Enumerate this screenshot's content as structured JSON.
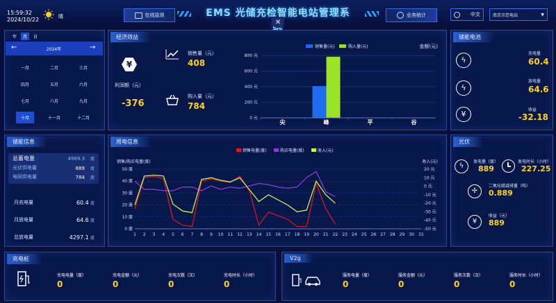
{
  "header": {
    "time": "15:59:32",
    "date": "2024/10/22",
    "weather": "晴",
    "title": "EMS 光储充检智能电站管理系统",
    "monitor_label": "在线监测",
    "stats_label": "业务统计",
    "lang": "中文",
    "site": "南京示范电站"
  },
  "calendar": {
    "tabs": [
      "年",
      "月",
      "日"
    ],
    "year": "2024年",
    "months": [
      "一月",
      "二月",
      "三月",
      "四月",
      "五月",
      "六月",
      "七月",
      "八月",
      "九月",
      "十月",
      "十一月",
      "十二月"
    ],
    "selected_index": 9
  },
  "economic": {
    "title": "经济效益",
    "profit_label": "利润额（元）",
    "profit_value": "-376",
    "sales_label": "销售量（元）",
    "sales_value": "408",
    "buy_label": "购入量（元）",
    "buy_value": "784"
  },
  "econ_chart": {
    "legend": [
      "销售量(元)",
      "购入量(元)"
    ],
    "unit": "金额(元)",
    "yticks": [
      "800 元",
      "600 元",
      "400 元",
      "200 元",
      "0 元"
    ],
    "categories": [
      "尖",
      "峰",
      "平",
      "谷"
    ]
  },
  "storage_battery": {
    "title": "储能电池",
    "charge_label": "充电量",
    "charge_value": "60.4",
    "discharge_label": "放电量",
    "discharge_value": "64.6",
    "income_label": "收益",
    "income_value": "-32.18"
  },
  "storage_info": {
    "title": "储能信息",
    "rows": [
      {
        "label": "总蓄电量",
        "value": "4989.3",
        "unit": "度"
      },
      {
        "label": "光伏供电量",
        "value": "889",
        "unit": "度"
      },
      {
        "label": "电网供电量",
        "value": "784",
        "unit": "度"
      }
    ],
    "month_charge_label": "月充电量",
    "month_charge_value": "60.4",
    "month_charge_unit": "度",
    "month_discharge_label": "月放电量",
    "month_discharge_value": "64.6",
    "month_discharge_unit": "度",
    "total_discharge_label": "总放电量",
    "total_discharge_value": "4297.1",
    "total_discharge_unit": "度"
  },
  "usage": {
    "title": "用电信息",
    "legend": [
      "销售电量(度)",
      "购买电量(度)",
      "收入(元)"
    ],
    "left_axis": "销售/购买电量(度)",
    "right_axis": "收入(元)",
    "yleft": [
      "50 度",
      "40 度",
      "30 度",
      "20 度",
      "10 度",
      "0 度"
    ],
    "yright": [
      "20 元",
      "10 元",
      "0 元",
      "-10 元",
      "-20 元",
      "-30 元",
      "-40 元",
      "-50 元"
    ],
    "xlabels": [
      "1",
      "2",
      "3",
      "4",
      "5",
      "6",
      "7",
      "8",
      "9",
      "10",
      "11",
      "12",
      "13",
      "14",
      "15",
      "16",
      "17",
      "18",
      "19",
      "20",
      "21",
      "22",
      "23",
      "24",
      "25",
      "26",
      "27",
      "28",
      "29",
      "30",
      "31"
    ]
  },
  "chart_data": [
    {
      "type": "bar",
      "title": "",
      "categories": [
        "尖",
        "峰",
        "平",
        "谷"
      ],
      "series": [
        {
          "name": "销售量(元)",
          "values": [
            0,
            408,
            0,
            0
          ]
        },
        {
          "name": "购入量(元)",
          "values": [
            0,
            784,
            0,
            0
          ]
        }
      ],
      "ylabel": "金额(元)",
      "ylim": [
        0,
        800
      ]
    },
    {
      "type": "line",
      "x": [
        1,
        2,
        3,
        4,
        5,
        6,
        7,
        8,
        9,
        10,
        11,
        12,
        13,
        14,
        15,
        16,
        17,
        18,
        19,
        20,
        21,
        22
      ],
      "series": [
        {
          "name": "销售电量(度)",
          "values": [
            17,
            43,
            44,
            42,
            8,
            3,
            2,
            40,
            42,
            40,
            39,
            44,
            32,
            3,
            14,
            11,
            8,
            2,
            2,
            38,
            17,
            4
          ]
        },
        {
          "name": "购买电量(度)",
          "values": [
            40,
            33,
            33,
            32,
            32,
            35,
            35,
            32,
            36,
            33,
            35,
            34,
            36,
            38,
            37,
            35,
            34,
            35,
            43,
            48,
            31,
            27
          ]
        },
        {
          "name": "收入(元)",
          "values": [
            -22,
            12,
            13,
            12,
            -21,
            -29,
            -31,
            8,
            10,
            7,
            5,
            10,
            -4,
            -18,
            -10,
            -16,
            -22,
            -30,
            -28,
            6,
            -10,
            -20
          ]
        }
      ],
      "ylim_left": [
        0,
        50
      ],
      "ylim_right": [
        -50,
        20
      ]
    }
  ],
  "pv": {
    "title": "光伏",
    "gen_label": "发电量（度）",
    "gen_value": "889",
    "gen_time_label": "发电时长（小时）",
    "gen_time_value": "227.25",
    "co2_label": "二氧化碳减排量（吨）",
    "co2_value": "0.889",
    "income_label": "收益（元）",
    "income_value": "889"
  },
  "charger": {
    "title": "充电桩",
    "items": [
      {
        "label": "充电电量（度）",
        "value": "0"
      },
      {
        "label": "充电金额（元）",
        "value": "0"
      },
      {
        "label": "充电次数（次）",
        "value": "0"
      },
      {
        "label": "充电时长（小时）",
        "value": "0"
      }
    ]
  },
  "v2g": {
    "title": "V2g",
    "items": [
      {
        "label": "服务电量（度）",
        "value": "0"
      },
      {
        "label": "服务金额（元）",
        "value": "0"
      },
      {
        "label": "服务次数（次）",
        "value": "0"
      },
      {
        "label": "服务时长（小时）",
        "value": "0"
      }
    ]
  },
  "colors": {
    "accent": "#2a5fd0",
    "yellow": "#ffd21f",
    "sales": "#1e6cf0",
    "buy": "#9be22a",
    "red": "#d11a2a",
    "purple": "#8a3fd6",
    "lime": "#c8f050"
  }
}
